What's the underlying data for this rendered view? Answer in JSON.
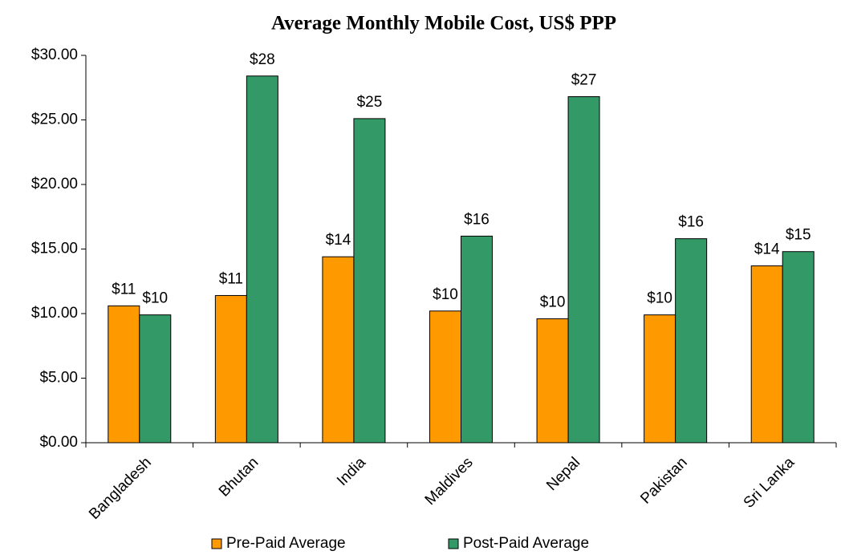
{
  "chart_data": {
    "type": "bar",
    "title": "Average Monthly Mobile Cost, US$ PPP",
    "categories": [
      "Bangladesh",
      "Bhutan",
      "India",
      "Maldives",
      "Nepal",
      "Pakistan",
      "Sri Lanka"
    ],
    "series": [
      {
        "name": "Pre-Paid Average",
        "color": "#ff9900",
        "values": [
          10.6,
          11.4,
          14.4,
          10.2,
          9.6,
          9.9,
          13.7
        ],
        "value_labels": [
          "$11",
          "$11",
          "$14",
          "$10",
          "$10",
          "$10",
          "$14"
        ]
      },
      {
        "name": "Post-Paid Average",
        "color": "#339966",
        "values": [
          9.9,
          28.4,
          25.1,
          16.0,
          26.8,
          15.8,
          14.8
        ],
        "value_labels": [
          "$10",
          "$28",
          "$25",
          "$16",
          "$27",
          "$16",
          "$15"
        ]
      }
    ],
    "ylim": [
      0,
      30
    ],
    "yticks": [
      {
        "value": 0,
        "label": "$0.00"
      },
      {
        "value": 5,
        "label": "$5.00"
      },
      {
        "value": 10,
        "label": "$10.00"
      },
      {
        "value": 15,
        "label": "$15.00"
      },
      {
        "value": 20,
        "label": "$20.00"
      },
      {
        "value": 25,
        "label": "$25.00"
      },
      {
        "value": 30,
        "label": "$30.00"
      }
    ],
    "grid": false,
    "legend": "bottom"
  }
}
